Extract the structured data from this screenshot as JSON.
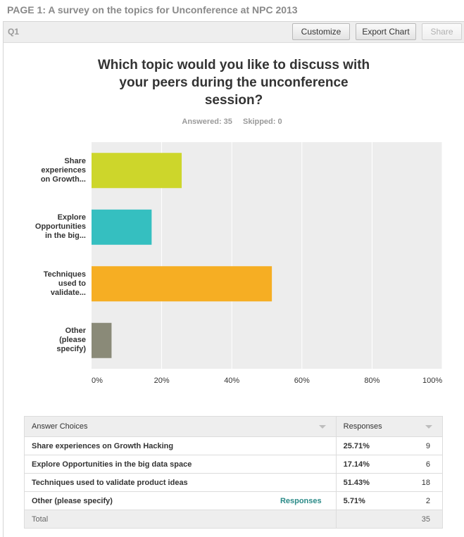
{
  "page_title": "PAGE 1: A survey on the topics for Unconference at NPC 2013",
  "question": {
    "label": "Q1",
    "title_lines": [
      "Which topic would you like to discuss with",
      "your peers during the unconference",
      "session?"
    ],
    "answered": "Answered: 35",
    "skipped": "Skipped: 0"
  },
  "toolbar": {
    "customize_label": "Customize",
    "export_label": "Export Chart",
    "share_label": "Share"
  },
  "chart_data": {
    "type": "bar",
    "orientation": "horizontal",
    "categories": [
      [
        "Share",
        "experiences",
        "on Growth..."
      ],
      [
        "Explore",
        "Opportunities",
        "in the big..."
      ],
      [
        "Techniques",
        "used to",
        "validate..."
      ],
      [
        "Other",
        "(please",
        "specify)"
      ]
    ],
    "values": [
      25.71,
      17.14,
      51.43,
      5.71
    ],
    "colors": [
      "#cdd62b",
      "#35bfc0",
      "#f6ae23",
      "#8a8a78"
    ],
    "xlim": [
      0,
      100
    ],
    "ticks": [
      "0%",
      "20%",
      "40%",
      "60%",
      "80%",
      "100%"
    ],
    "grid": true
  },
  "table": {
    "header_choices": "Answer Choices",
    "header_responses": "Responses",
    "rows": [
      {
        "choice": "Share experiences on Growth Hacking",
        "pct": "25.71%",
        "count": "9"
      },
      {
        "choice": "Explore Opportunities in the big data space",
        "pct": "17.14%",
        "count": "6"
      },
      {
        "choice": "Techniques used to validate product ideas",
        "pct": "51.43%",
        "count": "18"
      },
      {
        "choice": "Other (please specify)",
        "pct": "5.71%",
        "count": "2",
        "link": "Responses"
      }
    ],
    "total_label": "Total",
    "total_count": "35"
  }
}
